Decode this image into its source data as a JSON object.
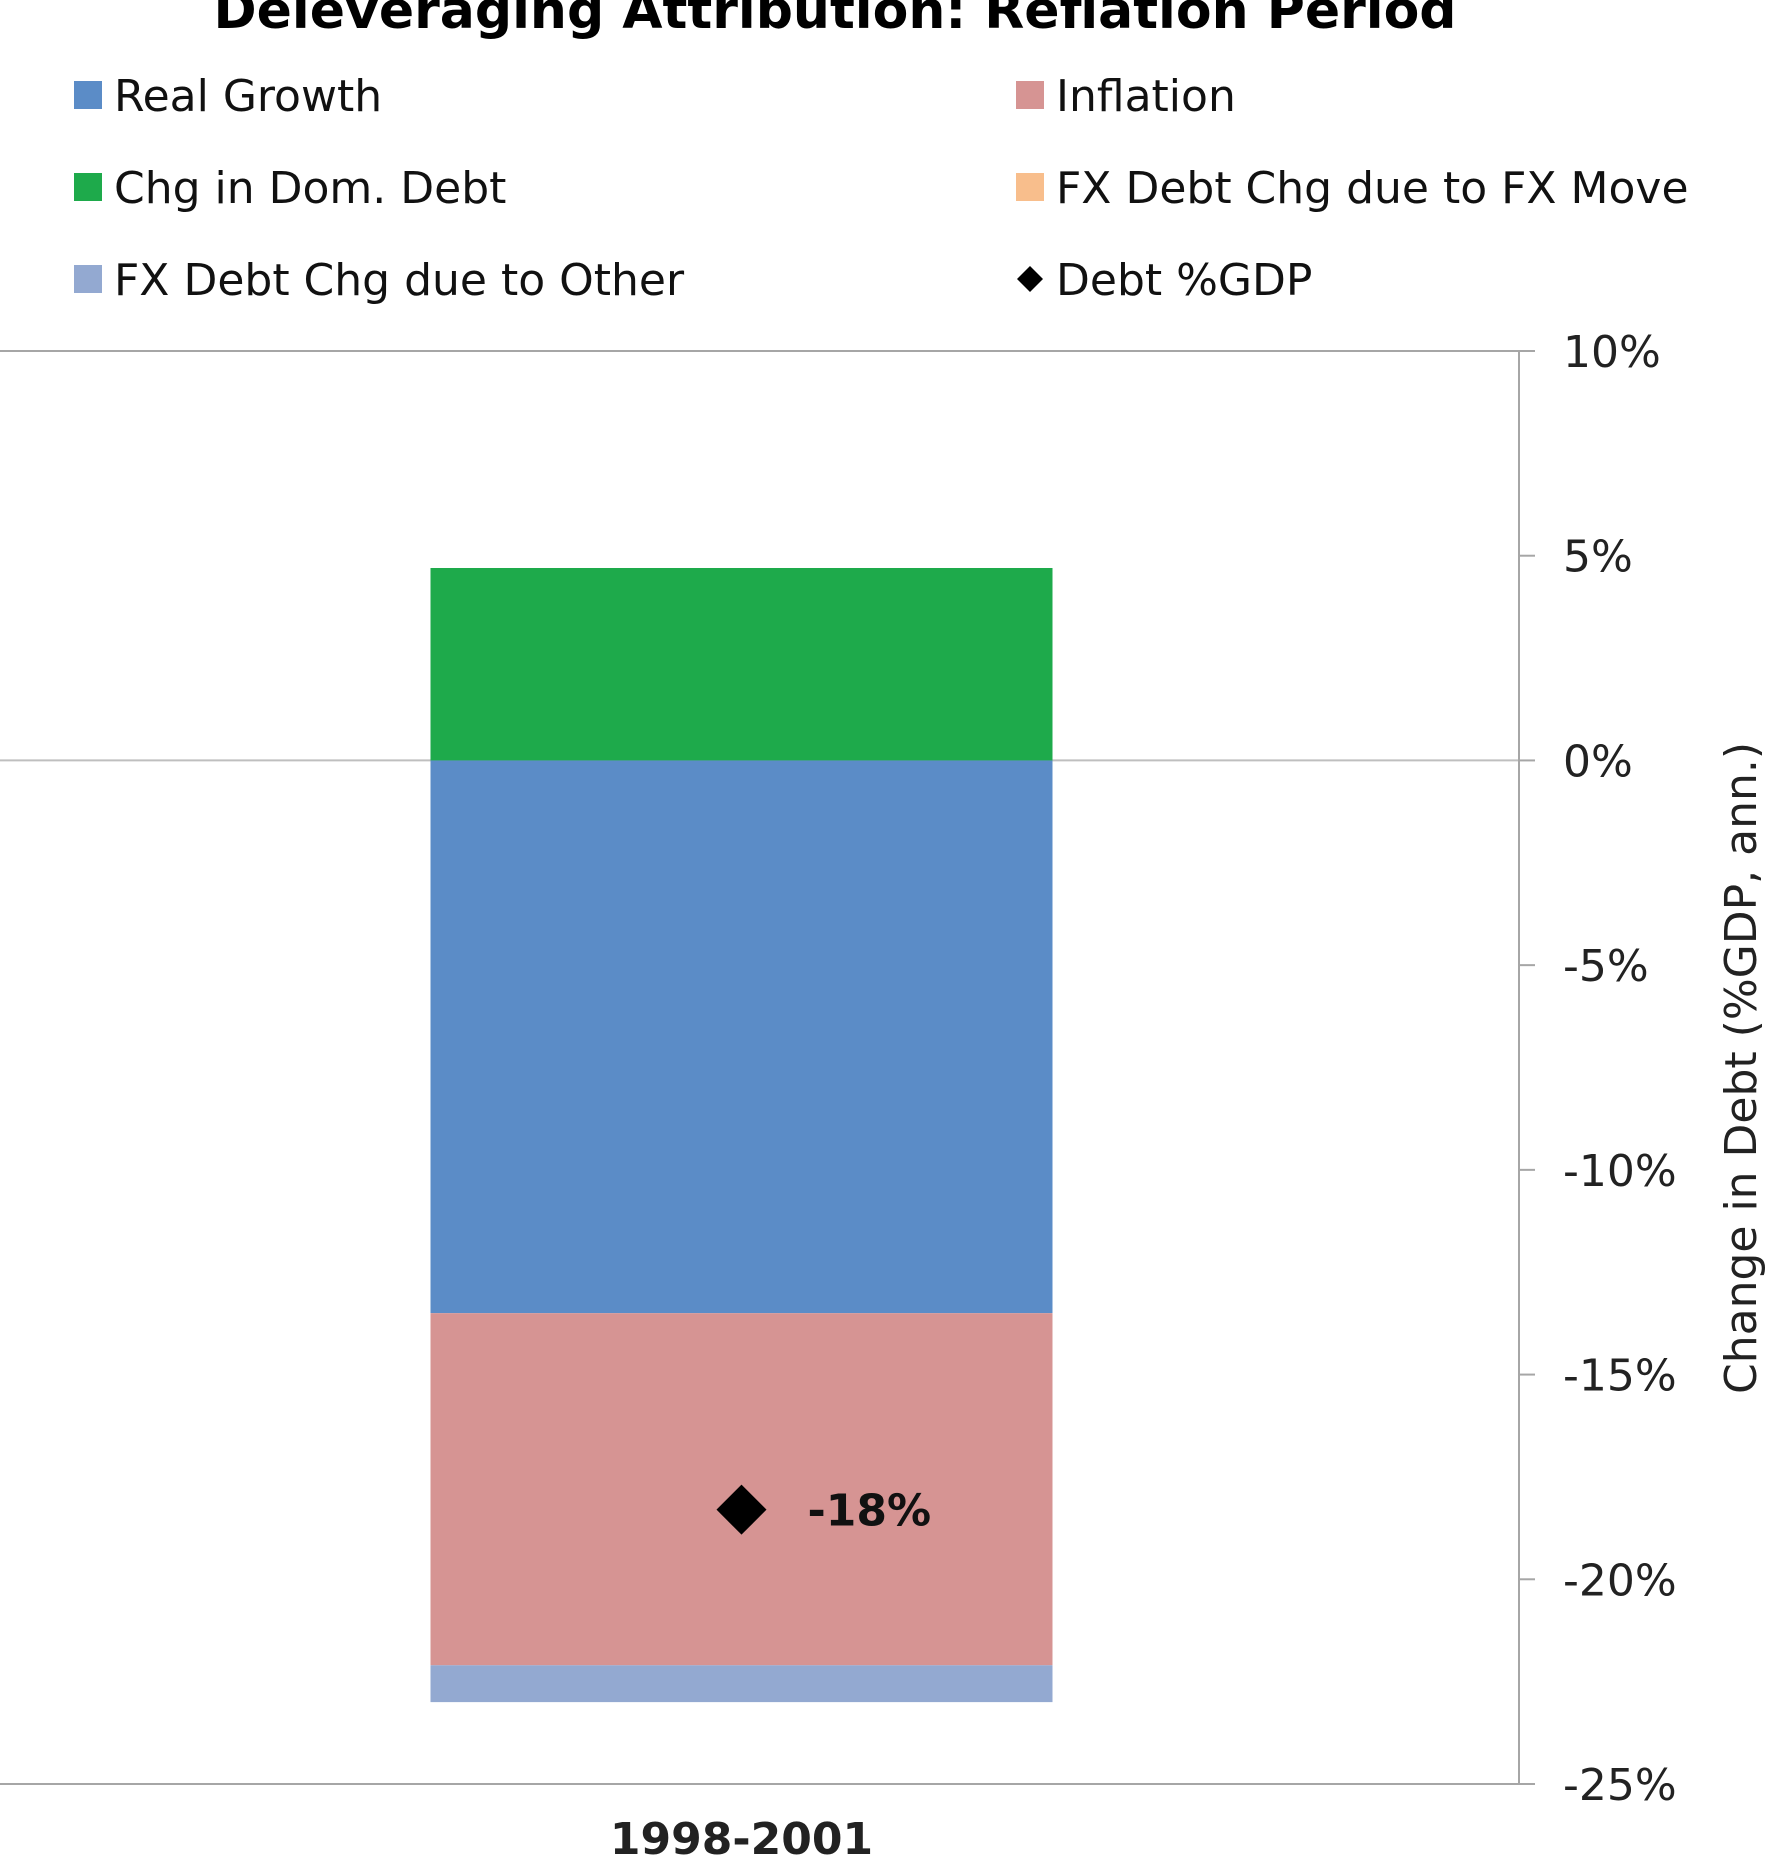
{
  "chart_data": {
    "type": "bar",
    "stacked": true,
    "title": "Deleveraging Attribution: Reflation Period",
    "categories": [
      "1998-2001"
    ],
    "series": [
      {
        "name": "Real Growth",
        "color": "#5B8CC7",
        "values": [
          -13.5
        ]
      },
      {
        "name": "Inflation",
        "color": "#D69493",
        "values": [
          -8.6
        ]
      },
      {
        "name": "Chg in Dom. Debt",
        "color": "#1EAA4B",
        "values": [
          4.7
        ]
      },
      {
        "name": "FX Debt Chg due to FX Move",
        "color": "#F8BE8C",
        "values": [
          0
        ]
      },
      {
        "name": "FX Debt Chg due to Other",
        "color": "#93A9D1",
        "values": [
          -0.9
        ]
      }
    ],
    "markers": [
      {
        "name": "Debt %GDP",
        "shape": "diamond",
        "color": "#000000",
        "values": [
          -18.3
        ],
        "label": "-18%"
      }
    ],
    "ylabel": "Change in Debt (%GDP, ann.)",
    "xlabel": "",
    "ylim": [
      -25,
      10
    ],
    "yticks": [
      10,
      5,
      0,
      -5,
      -10,
      -15,
      -20,
      -25
    ],
    "ytick_labels": [
      "10%",
      "5%",
      "0%",
      "-5%",
      "-10%",
      "-15%",
      "-20%",
      "-25%"
    ],
    "yaxis_side": "right",
    "legend_position": "top",
    "grid": false
  }
}
